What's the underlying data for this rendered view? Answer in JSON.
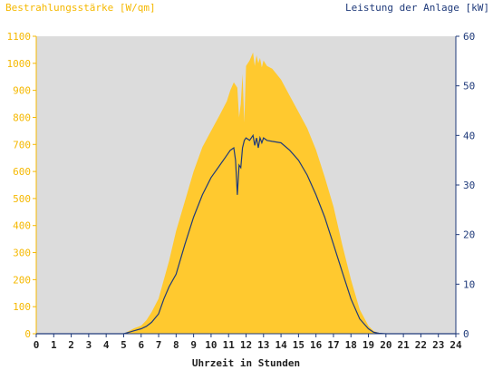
{
  "colors": {
    "left_axis": "#f5b800",
    "right_axis": "#1f3a7a",
    "irradiance_fill": "#ffc92f",
    "power_line": "#1f3a7a",
    "plot_bg": "#dcdcdc",
    "x_axis_text": "#1f1f1f"
  },
  "chart_data": {
    "type": "area",
    "title": "",
    "left_axis_label": "Bestrahlungsstärke [W/qm]",
    "right_axis_label": "Leistung der Anlage [kW]",
    "xlabel": "Uhrzeit in Stunden",
    "xlim": [
      0,
      24
    ],
    "x_ticks": [
      "0",
      "1",
      "2",
      "3",
      "4",
      "5",
      "6",
      "7",
      "8",
      "9",
      "10",
      "11",
      "12",
      "13",
      "14",
      "15",
      "16",
      "17",
      "18",
      "19",
      "20",
      "21",
      "22",
      "23",
      "24"
    ],
    "ylim_left": [
      0,
      1100
    ],
    "y_ticks_left": [
      "0",
      "100",
      "200",
      "300",
      "400",
      "500",
      "600",
      "700",
      "800",
      "900",
      "1000",
      "1100"
    ],
    "ylim_right": [
      0,
      60
    ],
    "y_ticks_right": [
      "0",
      "10",
      "20",
      "30",
      "40",
      "50",
      "60"
    ],
    "grid": false,
    "series": [
      {
        "name": "Bestrahlungsstärke [W/qm]",
        "axis": "left",
        "style": "area",
        "x": [
          0,
          5.0,
          5.3,
          5.6,
          6.0,
          6.3,
          6.6,
          7.0,
          7.3,
          7.6,
          8.0,
          8.5,
          9.0,
          9.5,
          10.0,
          10.5,
          10.9,
          11.1,
          11.3,
          11.5,
          11.6,
          11.7,
          11.8,
          11.9,
          12.0,
          12.2,
          12.4,
          12.5,
          12.6,
          12.7,
          12.8,
          12.9,
          13.0,
          13.2,
          13.5,
          14.0,
          14.5,
          15.0,
          15.5,
          16.0,
          16.5,
          17.0,
          17.5,
          18.0,
          18.5,
          19.0,
          19.3,
          19.6,
          20.0,
          24
        ],
        "y": [
          0,
          0,
          10,
          20,
          30,
          50,
          80,
          130,
          200,
          270,
          380,
          490,
          600,
          690,
          750,
          810,
          860,
          900,
          930,
          910,
          800,
          850,
          960,
          780,
          990,
          1010,
          1040,
          990,
          1030,
          1000,
          1020,
          985,
          1010,
          990,
          980,
          940,
          880,
          820,
          760,
          680,
          580,
          470,
          330,
          200,
          90,
          30,
          10,
          3,
          0,
          0
        ]
      },
      {
        "name": "Leistung der Anlage [kW]",
        "axis": "right",
        "style": "line",
        "x": [
          0,
          5.0,
          5.3,
          5.6,
          6.0,
          6.3,
          6.6,
          7.0,
          7.3,
          7.6,
          8.0,
          8.5,
          9.0,
          9.5,
          10.0,
          10.5,
          10.9,
          11.1,
          11.3,
          11.4,
          11.5,
          11.6,
          11.7,
          11.8,
          11.9,
          12.0,
          12.2,
          12.4,
          12.5,
          12.6,
          12.7,
          12.8,
          12.9,
          13.0,
          13.2,
          13.5,
          14.0,
          14.5,
          15.0,
          15.5,
          16.0,
          16.5,
          17.0,
          17.5,
          18.0,
          18.5,
          19.0,
          19.3,
          19.6,
          20.0,
          24
        ],
        "y": [
          0,
          0,
          0.3,
          0.6,
          1.0,
          1.5,
          2.3,
          4.0,
          7.0,
          9.5,
          12.0,
          18.0,
          23.5,
          28.0,
          31.5,
          34.0,
          36.0,
          37.0,
          37.5,
          35.0,
          28.0,
          34.0,
          33.5,
          37.5,
          39.0,
          39.5,
          39.0,
          40.0,
          38.0,
          39.5,
          37.5,
          39.5,
          38.5,
          39.5,
          39.0,
          38.8,
          38.5,
          37.0,
          35.0,
          32.0,
          28.0,
          23.5,
          18.0,
          12.5,
          7.0,
          3.0,
          1.0,
          0.3,
          0.1,
          0,
          0
        ]
      }
    ]
  }
}
